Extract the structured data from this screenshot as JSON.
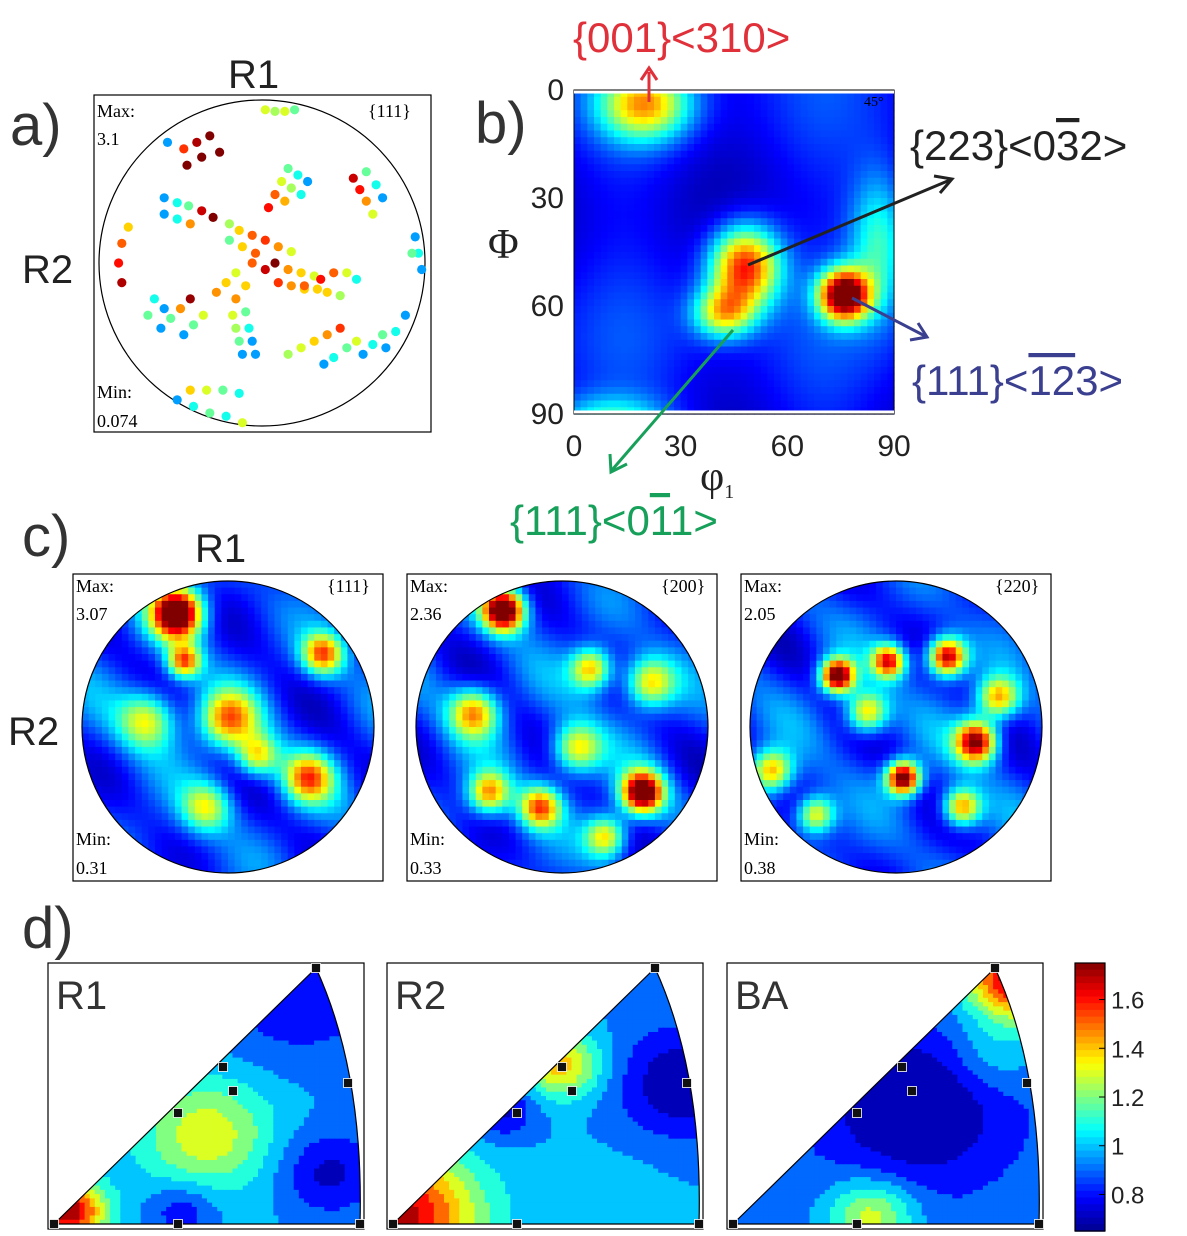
{
  "panels": {
    "a": "a)",
    "b": "b)",
    "c": "c)",
    "d": "d)"
  },
  "axis_names": {
    "r1": "R1",
    "r2": "R2"
  },
  "colors": {
    "red_annot": "#e0303a",
    "dark_annot": "#222222",
    "green_annot": "#17a05a",
    "blue_annot": "#3b3f8f",
    "colormap": [
      "#00008f",
      "#0000ff",
      "#0080ff",
      "#00ffff",
      "#80ff80",
      "#ffff00",
      "#ff8000",
      "#ff0000",
      "#800000"
    ]
  },
  "chart_data": [
    {
      "type": "scatter",
      "panel": "a",
      "corner_text": "{111}",
      "max_label": "Max:",
      "max_value": "3.1",
      "min_label": "Min:",
      "min_value": "0.074",
      "vmin": 0.074,
      "vmax": 3.1,
      "points": [
        [
          0.02,
          0.94,
          0.6
        ],
        [
          0.08,
          0.93,
          0.5
        ],
        [
          0.14,
          0.93,
          0.6
        ],
        [
          0.2,
          0.94,
          0.4
        ],
        [
          -0.58,
          0.74,
          0.2
        ],
        [
          -0.48,
          0.7,
          1.4
        ],
        [
          -0.4,
          0.74,
          2.2
        ],
        [
          -0.32,
          0.78,
          2.6
        ],
        [
          -0.46,
          0.6,
          3.1
        ],
        [
          -0.37,
          0.65,
          3.0
        ],
        [
          -0.26,
          0.68,
          3.1
        ],
        [
          -0.6,
          0.4,
          0.2
        ],
        [
          -0.52,
          0.37,
          0.3
        ],
        [
          -0.45,
          0.35,
          0.4
        ],
        [
          -0.37,
          0.32,
          2.0
        ],
        [
          -0.3,
          0.28,
          3.0
        ],
        [
          -0.6,
          0.3,
          0.2
        ],
        [
          -0.52,
          0.27,
          0.3
        ],
        [
          -0.44,
          0.24,
          1.0
        ],
        [
          -0.82,
          0.22,
          0.8
        ],
        [
          -0.86,
          0.12,
          1.2
        ],
        [
          -0.88,
          0.0,
          1.6
        ],
        [
          -0.86,
          -0.12,
          2.2
        ],
        [
          0.16,
          0.58,
          0.4
        ],
        [
          0.12,
          0.5,
          0.6
        ],
        [
          0.08,
          0.42,
          1.2
        ],
        [
          0.04,
          0.34,
          1.6
        ],
        [
          0.22,
          0.54,
          0.3
        ],
        [
          0.18,
          0.46,
          0.5
        ],
        [
          0.14,
          0.38,
          0.9
        ],
        [
          0.28,
          0.5,
          0.2
        ],
        [
          0.24,
          0.42,
          0.3
        ],
        [
          0.56,
          0.52,
          2.0
        ],
        [
          0.6,
          0.45,
          1.6
        ],
        [
          0.64,
          0.38,
          1.0
        ],
        [
          0.68,
          0.3,
          0.6
        ],
        [
          0.64,
          0.56,
          0.4
        ],
        [
          0.7,
          0.48,
          0.3
        ],
        [
          0.74,
          0.4,
          0.2
        ],
        [
          -0.2,
          0.24,
          0.5
        ],
        [
          -0.14,
          0.2,
          0.8
        ],
        [
          -0.06,
          0.17,
          1.2
        ],
        [
          0.02,
          0.14,
          1.4
        ],
        [
          0.1,
          0.1,
          1.0
        ],
        [
          0.18,
          0.07,
          0.6
        ],
        [
          -0.2,
          0.14,
          0.4
        ],
        [
          -0.12,
          0.1,
          0.8
        ],
        [
          -0.04,
          0.06,
          1.2
        ],
        [
          0.08,
          0.0,
          3.0
        ],
        [
          0.02,
          -0.04,
          2.0
        ],
        [
          -0.06,
          0.0,
          1.2
        ],
        [
          -0.16,
          -0.06,
          0.6
        ],
        [
          -0.22,
          -0.12,
          0.8
        ],
        [
          -0.28,
          -0.18,
          1.0
        ],
        [
          -0.1,
          -0.14,
          0.8
        ],
        [
          -0.16,
          -0.22,
          1.0
        ],
        [
          0.16,
          -0.04,
          1.0
        ],
        [
          0.24,
          -0.06,
          0.8
        ],
        [
          0.32,
          -0.08,
          0.6
        ],
        [
          0.1,
          -0.12,
          1.4
        ],
        [
          0.18,
          -0.14,
          1.0
        ],
        [
          0.26,
          -0.16,
          0.8
        ],
        [
          0.26,
          -0.14,
          1.2
        ],
        [
          0.34,
          -0.16,
          0.8
        ],
        [
          0.36,
          -0.1,
          1.6
        ],
        [
          0.44,
          -0.06,
          1.2
        ],
        [
          0.52,
          -0.06,
          0.6
        ],
        [
          0.58,
          -0.1,
          0.3
        ],
        [
          0.4,
          -0.18,
          0.8
        ],
        [
          0.48,
          -0.2,
          0.5
        ],
        [
          0.94,
          0.16,
          0.2
        ],
        [
          0.96,
          0.06,
          0.3
        ],
        [
          0.98,
          -0.04,
          0.2
        ],
        [
          0.92,
          0.06,
          0.4
        ],
        [
          0.88,
          -0.32,
          0.2
        ],
        [
          0.82,
          -0.42,
          0.3
        ],
        [
          0.76,
          -0.52,
          0.2
        ],
        [
          0.74,
          -0.44,
          0.4
        ],
        [
          0.68,
          -0.5,
          0.3
        ],
        [
          0.62,
          -0.56,
          0.2
        ],
        [
          0.58,
          -0.48,
          0.6
        ],
        [
          0.52,
          -0.52,
          0.4
        ],
        [
          0.44,
          -0.58,
          0.3
        ],
        [
          0.38,
          -0.62,
          0.2
        ],
        [
          0.48,
          -0.4,
          1.4
        ],
        [
          0.4,
          -0.44,
          1.0
        ],
        [
          0.32,
          -0.48,
          0.8
        ],
        [
          0.24,
          -0.52,
          0.6
        ],
        [
          0.16,
          -0.56,
          0.5
        ],
        [
          -0.18,
          -0.32,
          0.6
        ],
        [
          -0.16,
          -0.4,
          0.5
        ],
        [
          -0.14,
          -0.48,
          0.4
        ],
        [
          -0.12,
          -0.56,
          0.2
        ],
        [
          -0.08,
          -0.4,
          0.3
        ],
        [
          -0.06,
          -0.48,
          0.2
        ],
        [
          -0.04,
          -0.56,
          0.2
        ],
        [
          -0.1,
          -0.3,
          0.4
        ],
        [
          -0.44,
          -0.22,
          2.4
        ],
        [
          -0.5,
          -0.28,
          1.0
        ],
        [
          -0.56,
          -0.34,
          0.4
        ],
        [
          -0.62,
          -0.4,
          0.2
        ],
        [
          -0.36,
          -0.32,
          0.6
        ],
        [
          -0.42,
          -0.38,
          0.4
        ],
        [
          -0.48,
          -0.44,
          0.2
        ],
        [
          -0.66,
          -0.22,
          0.3
        ],
        [
          -0.6,
          -0.28,
          0.2
        ],
        [
          -0.7,
          -0.32,
          0.4
        ],
        [
          -0.44,
          -0.78,
          0.8
        ],
        [
          -0.34,
          -0.78,
          0.6
        ],
        [
          -0.24,
          -0.78,
          0.4
        ],
        [
          -0.14,
          -0.8,
          0.3
        ],
        [
          -0.52,
          -0.84,
          0.2
        ],
        [
          -0.42,
          -0.88,
          0.3
        ],
        [
          -0.32,
          -0.92,
          0.4
        ],
        [
          -0.22,
          -0.94,
          0.3
        ],
        [
          -0.12,
          -0.98,
          0.6
        ]
      ]
    },
    {
      "type": "heatmap",
      "panel": "b",
      "corner_text": "45°",
      "xlabel": "φ",
      "xlabel_sub": "1",
      "ylabel": "Φ",
      "x_ticks": [
        "0",
        "30",
        "60",
        "90"
      ],
      "y_ticks": [
        "0",
        "30",
        "60",
        "90"
      ],
      "xlim": [
        0,
        90
      ],
      "ylim": [
        0,
        90
      ],
      "annotations": [
        {
          "text": "{001}<310>",
          "color": "#e0303a",
          "phi1": 20,
          "Phi": 0
        },
        {
          "text": "{223}<032>",
          "color": "#222222",
          "phi1": 50,
          "Phi": 49,
          "overline": "3"
        },
        {
          "text": "{111}<123>",
          "color": "#3b3f8f",
          "phi1": 78,
          "Phi": 57,
          "overline": "12"
        },
        {
          "text": "{111}<011>",
          "color": "#17a05a",
          "phi1": 46,
          "Phi": 66,
          "overline": "1"
        }
      ],
      "peaks": [
        [
          20,
          4,
          9,
          7,
          0.55
        ],
        [
          48,
          49,
          7,
          8,
          0.78
        ],
        [
          76,
          57,
          5,
          5,
          1.0
        ],
        [
          42,
          62,
          6,
          5,
          0.5
        ],
        [
          10,
          92,
          12,
          5,
          0.3
        ],
        [
          86,
          42,
          6,
          14,
          0.35
        ]
      ]
    },
    {
      "type": "heatmap",
      "panel": "c1",
      "corner_text": "{111}",
      "max_label": "Max:",
      "max_value": "3.07",
      "min_label": "Min:",
      "min_value": "0.31"
    },
    {
      "type": "heatmap",
      "panel": "c2",
      "corner_text": "{200}",
      "max_label": "Max:",
      "max_value": "2.36",
      "min_label": "Min:",
      "min_value": "0.33"
    },
    {
      "type": "heatmap",
      "panel": "c3",
      "corner_text": "{220}",
      "max_label": "Max:",
      "max_value": "2.05",
      "min_label": "Min:",
      "min_value": "0.38"
    },
    {
      "type": "heatmap",
      "panel": "d",
      "triangles": [
        "R1",
        "R2",
        "BA"
      ],
      "colorbar_ticks": [
        "1.6",
        "1.4",
        "1.2",
        "1",
        "0.8"
      ],
      "colorbar_range": [
        0.65,
        1.75
      ]
    }
  ]
}
